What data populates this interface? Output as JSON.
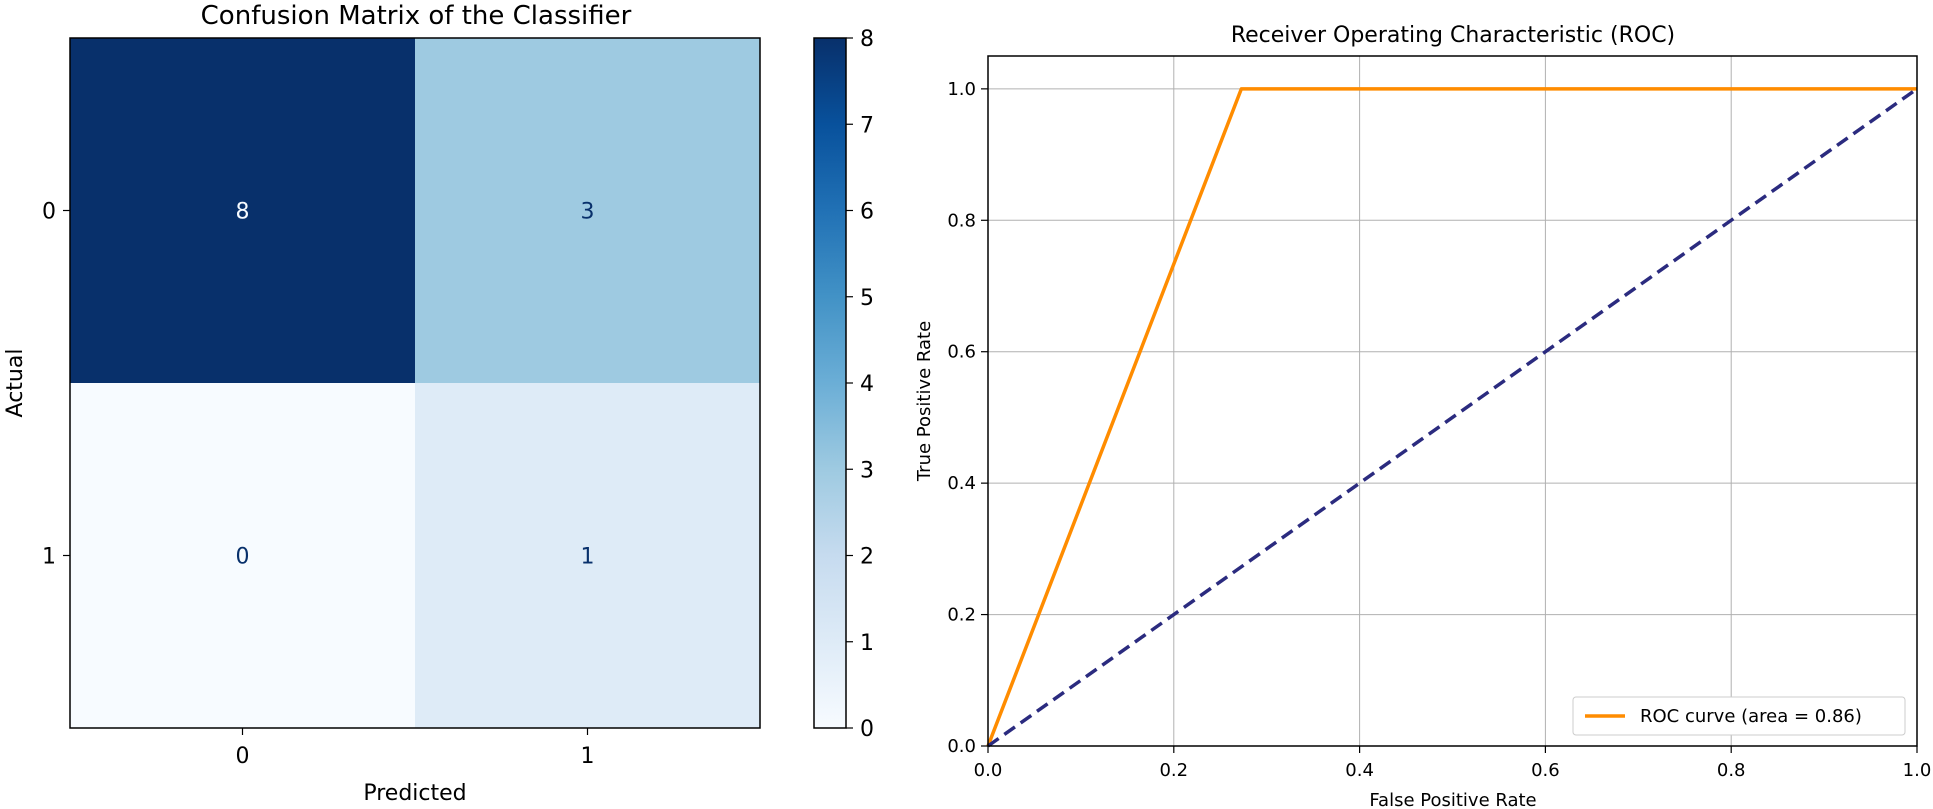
{
  "chart_data": [
    {
      "type": "heatmap",
      "title": "Confusion Matrix of the Classifier",
      "xlabel": "Predicted",
      "ylabel": "Actual",
      "x_categories": [
        "0",
        "1"
      ],
      "y_categories": [
        "0",
        "1"
      ],
      "values": [
        [
          8,
          3
        ],
        [
          0,
          1
        ]
      ],
      "colormap": "Blues",
      "colorbar": {
        "range": [
          0,
          8
        ],
        "ticks": [
          "0",
          "1",
          "2",
          "3",
          "4",
          "5",
          "6",
          "7",
          "8"
        ]
      }
    },
    {
      "type": "line",
      "title": "Receiver Operating Characteristic (ROC)",
      "xlabel": "False Positive Rate",
      "ylabel": "True Positive Rate",
      "xlim": [
        0.0,
        1.0
      ],
      "ylim": [
        0.0,
        1.05
      ],
      "xticks": [
        "0.0",
        "0.2",
        "0.4",
        "0.6",
        "0.8",
        "1.0"
      ],
      "yticks": [
        "0.0",
        "0.2",
        "0.4",
        "0.6",
        "0.8",
        "1.0"
      ],
      "grid": true,
      "legend_position": "lower-right",
      "series": [
        {
          "name": "ROC curve (area = 0.86)",
          "color": "#ff8c00",
          "style": "solid",
          "x": [
            0.0,
            0.2727,
            1.0
          ],
          "y": [
            0.0,
            1.0,
            1.0
          ]
        },
        {
          "color": "#2b2b7f",
          "style": "dashed",
          "x": [
            0.0,
            1.0
          ],
          "y": [
            0.0,
            1.0
          ]
        }
      ]
    }
  ]
}
